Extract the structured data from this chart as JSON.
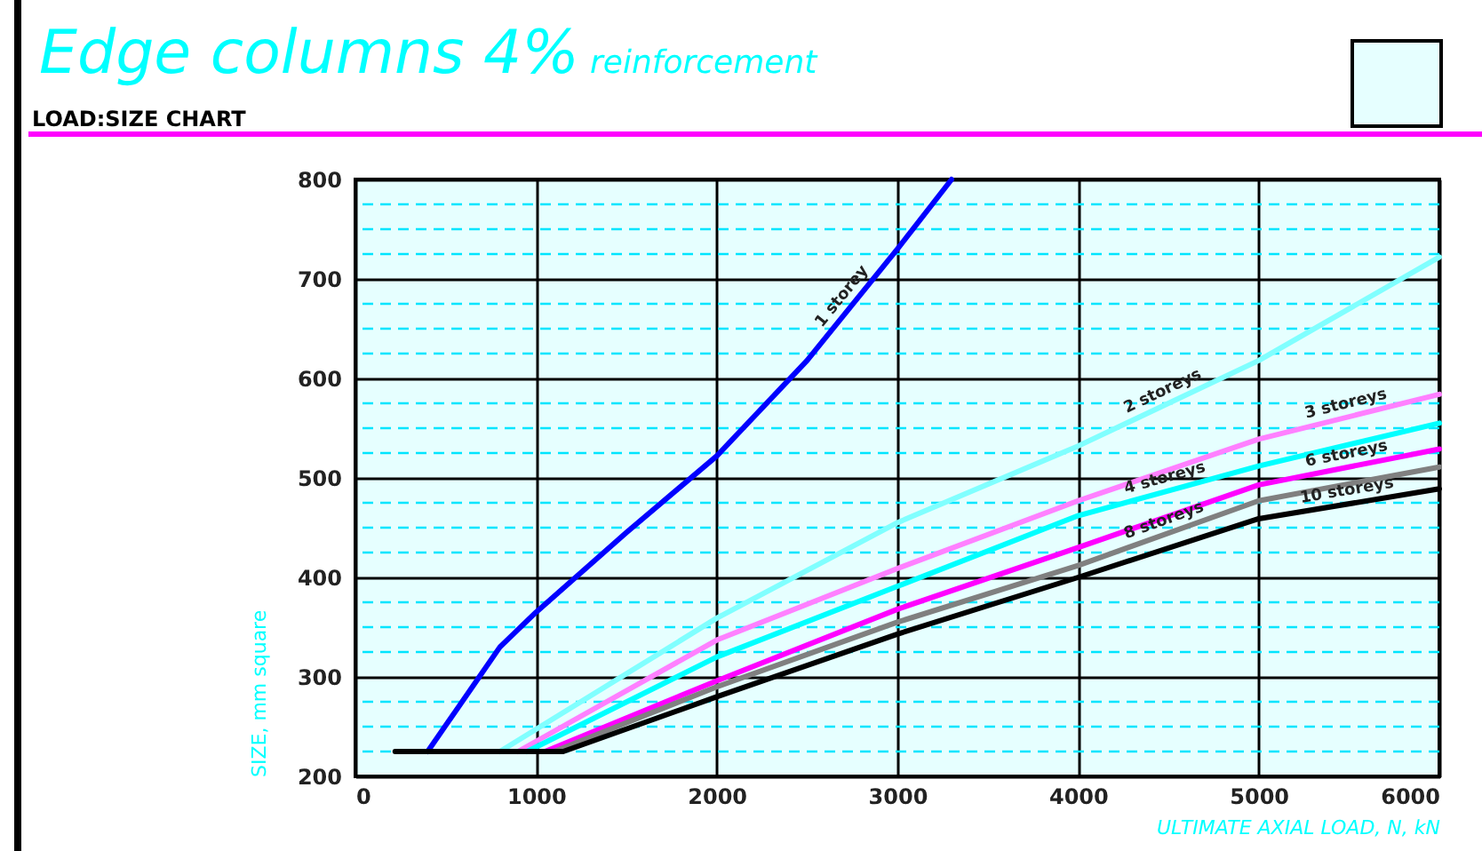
{
  "chart_data": {
    "type": "line",
    "title": "Edge columns 4%",
    "subtitle": "reinforcement",
    "annotations": [
      "LOAD:SIZE CHART"
    ],
    "xlabel": "ULTIMATE AXIAL LOAD, N, kN",
    "ylabel": "SIZE, mm square",
    "xlim": [
      0,
      6000
    ],
    "xticks": [
      0,
      1000,
      2000,
      3000,
      4000,
      5000,
      6000
    ],
    "ylim": [
      200,
      800
    ],
    "yticks": [
      200,
      {
        "value": 225,
        "label": null
      },
      {
        "value": 250,
        "label": null
      },
      {
        "value": 275,
        "label": null
      },
      300,
      {
        "value": 325,
        "label": null
      },
      {
        "value": 350,
        "label": null
      },
      {
        "value": 375,
        "label": null
      },
      400,
      {
        "value": 425,
        "label": null
      },
      {
        "value": 450,
        "label": null
      },
      {
        "value": 475,
        "label": null
      },
      500,
      {
        "value": 525,
        "label": null
      },
      {
        "value": 550,
        "label": null
      },
      {
        "value": 575,
        "label": null
      },
      600,
      {
        "value": 625,
        "label": null
      },
      {
        "value": 650,
        "label": null
      },
      {
        "value": 675,
        "label": null
      },
      700,
      {
        "value": 725,
        "label": null
      },
      {
        "value": 750,
        "label": null
      },
      {
        "value": 775,
        "label": null
      },
      800
    ],
    "grid": true,
    "legend": false,
    "marker": "none",
    "line_style": "solid",
    "series": [
      {
        "name": "1 storey",
        "color": "#0000ff",
        "x": [
          400,
          800,
          1000,
          1500,
          2000,
          2500,
          3000,
          3300
        ],
        "values": [
          225,
          330,
          365,
          445,
          522,
          618,
          730,
          800
        ]
      },
      {
        "name": "2 storeys",
        "color": "#80ffff",
        "x": [
          800,
          2000,
          3000,
          4000,
          5000,
          6000
        ],
        "values": [
          225,
          359,
          455,
          532,
          618,
          722
        ]
      },
      {
        "name": "3 storeys",
        "color": "#ff80ff",
        "x": [
          900,
          2000,
          3000,
          4000,
          5000,
          6000
        ],
        "values": [
          225,
          337,
          409,
          477,
          539,
          584
        ]
      },
      {
        "name": "4 storeys",
        "color": "#00ffff",
        "x": [
          950,
          2000,
          3000,
          4000,
          5000,
          6000
        ],
        "values": [
          225,
          320,
          391,
          462,
          512,
          555
        ]
      },
      {
        "name": "6 storeys",
        "color": "#ff00ff",
        "x": [
          1050,
          2000,
          3000,
          4000,
          5000,
          6000
        ],
        "values": [
          225,
          296,
          368,
          430,
          493,
          529
        ]
      },
      {
        "name": "8 storeys",
        "color": "#808080",
        "x": [
          1100,
          2000,
          3000,
          4000,
          5000,
          6000
        ],
        "values": [
          225,
          290,
          355,
          412,
          477,
          511
        ]
      },
      {
        "name": "10 storeys",
        "color": "#000000",
        "x": [
          220,
          1150,
          2000,
          3000,
          4000,
          5000,
          6000
        ],
        "values": [
          225,
          225,
          280,
          343,
          400,
          459,
          489
        ]
      }
    ]
  }
}
